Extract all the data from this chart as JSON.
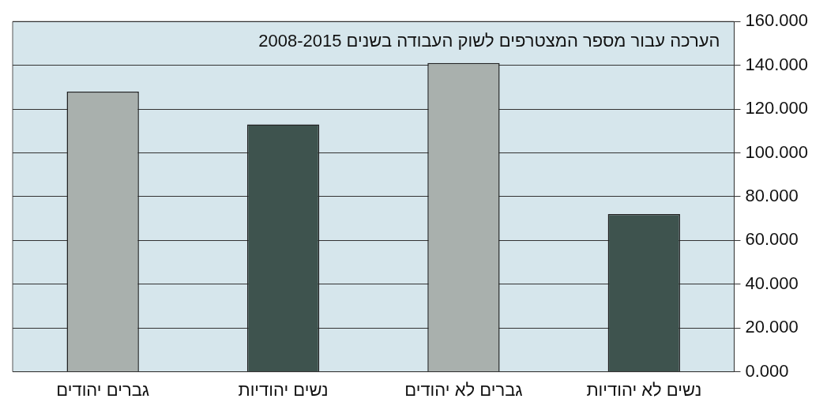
{
  "chart_data": {
    "type": "bar",
    "title": "הערכה עבור מספר המצטרפים לשוק העבודה בשנים 2008-2015",
    "categories": [
      "גברים יהודים",
      "נשים יהודיות",
      "גברים לא יהודים",
      "נשים לא יהודיות"
    ],
    "values": [
      128,
      113,
      141,
      72
    ],
    "colors": [
      "#a9b0ad",
      "#3e534e",
      "#a9b0ad",
      "#3e534e"
    ],
    "ylim": [
      0,
      160
    ],
    "yticks": [
      {
        "value": 0,
        "label": "0.000"
      },
      {
        "value": 20,
        "label": "20.000"
      },
      {
        "value": 40,
        "label": "40.000"
      },
      {
        "value": 60,
        "label": "60.000"
      },
      {
        "value": 80,
        "label": "80.000"
      },
      {
        "value": 100,
        "label": "100.000"
      },
      {
        "value": 120,
        "label": "120.000"
      },
      {
        "value": 140,
        "label": "140.000"
      },
      {
        "value": 160,
        "label": "160.000"
      }
    ],
    "grid": "y",
    "legend": false
  }
}
